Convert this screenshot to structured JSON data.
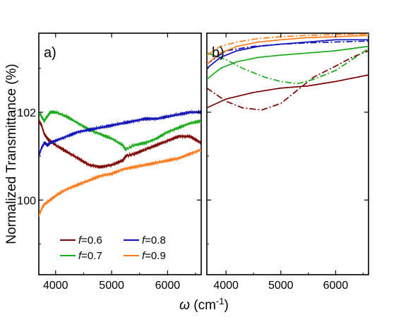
{
  "chart_data": [
    {
      "panel": "a)",
      "type": "line",
      "xlabel": "ω (cm⁻¹)",
      "ylabel": "Normalized Transmittance (%)",
      "xlim": [
        3700,
        6600
      ],
      "ylim": [
        98.3,
        103.8
      ],
      "xticks": [
        "4000",
        "5000",
        "6000"
      ],
      "yticks": [
        "100",
        "102"
      ],
      "grid": false,
      "legend": {
        "placement": "bottom",
        "entries": [
          {
            "label_italic": "f",
            "label_rest": "=0.6",
            "color": "#7b0000"
          },
          {
            "label_italic": "f",
            "label_rest": "=0.8",
            "color": "#1010b8"
          },
          {
            "label_italic": "f",
            "label_rest": "=0.7",
            "color": "#1aaa1a"
          },
          {
            "label_italic": "f",
            "label_rest": "=0.9",
            "color": "#ff7a1a"
          }
        ]
      },
      "series": [
        {
          "color": "#7b0000",
          "x": [
            3700,
            3750,
            3800,
            3850,
            3900,
            4000,
            4200,
            4400,
            4600,
            4800,
            5000,
            5200,
            5250,
            5400,
            5600,
            5800,
            6000,
            6200,
            6400,
            6600
          ],
          "y": [
            101.8,
            101.7,
            101.5,
            101.4,
            101.35,
            101.25,
            101.1,
            100.95,
            100.8,
            100.75,
            100.8,
            100.9,
            101.0,
            101.05,
            101.15,
            101.25,
            101.35,
            101.45,
            101.45,
            101.3
          ]
        },
        {
          "color": "#1aaa1a",
          "x": [
            3700,
            3750,
            3800,
            3850,
            3900,
            4000,
            4200,
            4400,
            4600,
            4800,
            5000,
            5200,
            5250,
            5400,
            5600,
            5800,
            6000,
            6200,
            6400,
            6600
          ],
          "y": [
            102.0,
            101.9,
            101.8,
            101.9,
            102.0,
            102.0,
            101.9,
            101.75,
            101.6,
            101.5,
            101.4,
            101.25,
            101.15,
            101.25,
            101.3,
            101.4,
            101.55,
            101.65,
            101.75,
            101.8
          ]
        },
        {
          "color": "#1010b8",
          "x": [
            3700,
            3750,
            3800,
            3850,
            3900,
            4000,
            4200,
            4400,
            4600,
            4800,
            5000,
            5200,
            5400,
            5600,
            5800,
            6000,
            6200,
            6400,
            6600
          ],
          "y": [
            101.0,
            101.2,
            101.3,
            101.25,
            101.3,
            101.35,
            101.45,
            101.55,
            101.6,
            101.65,
            101.7,
            101.75,
            101.8,
            101.85,
            101.85,
            101.9,
            101.95,
            102.0,
            102.0
          ]
        },
        {
          "color": "#ff7a1a",
          "x": [
            3700,
            3750,
            3800,
            3900,
            4000,
            4200,
            4400,
            4600,
            4800,
            5000,
            5200,
            5400,
            5600,
            5800,
            6000,
            6200,
            6400,
            6600
          ],
          "y": [
            99.65,
            99.8,
            99.9,
            100.0,
            100.1,
            100.25,
            100.35,
            100.45,
            100.55,
            100.6,
            100.7,
            100.75,
            100.8,
            100.85,
            100.9,
            100.95,
            101.05,
            101.15
          ]
        }
      ]
    },
    {
      "panel": "b)",
      "type": "line",
      "xlabel": "ω (cm⁻¹)",
      "ylabel": "",
      "xlim": [
        3650,
        6600
      ],
      "ylim": [
        98.3,
        103.8
      ],
      "xticks": [
        "4000",
        "5000",
        "6000"
      ],
      "yticks": [],
      "grid": false,
      "series": [
        {
          "color": "#7b0000",
          "style": "solid",
          "x": [
            3650,
            4000,
            4500,
            5000,
            5500,
            6000,
            6600
          ],
          "y": [
            102.1,
            102.3,
            102.45,
            102.55,
            102.6,
            102.7,
            102.85
          ]
        },
        {
          "color": "#7b0000",
          "style": "dashdot",
          "x": [
            3650,
            4000,
            4300,
            4650,
            5000,
            5300,
            5600,
            6000,
            6300,
            6600
          ],
          "y": [
            102.55,
            102.25,
            102.1,
            102.05,
            102.2,
            102.5,
            102.8,
            103.05,
            103.25,
            103.4
          ]
        },
        {
          "color": "#1aaa1a",
          "style": "solid",
          "x": [
            3650,
            3900,
            4200,
            4600,
            5000,
            5500,
            6000,
            6600
          ],
          "y": [
            102.75,
            103.0,
            103.15,
            103.25,
            103.3,
            103.35,
            103.4,
            103.5
          ]
        },
        {
          "color": "#1aaa1a",
          "style": "dashdot",
          "x": [
            3650,
            4000,
            4300,
            4700,
            5000,
            5300,
            5600,
            6000,
            6300,
            6600
          ],
          "y": [
            103.35,
            103.2,
            103.0,
            102.8,
            102.7,
            102.65,
            102.75,
            102.95,
            103.2,
            103.45
          ]
        },
        {
          "color": "#1010b8",
          "style": "solid",
          "x": [
            3650,
            3900,
            4200,
            4600,
            5000,
            5500,
            6000,
            6600
          ],
          "y": [
            103.0,
            103.25,
            103.4,
            103.5,
            103.55,
            103.6,
            103.65,
            103.65
          ]
        },
        {
          "color": "#1010b8",
          "style": "dashdot",
          "x": [
            3650,
            4000,
            4500,
            5000,
            5500,
            6000,
            6600
          ],
          "y": [
            103.1,
            103.4,
            103.5,
            103.55,
            103.58,
            103.6,
            103.62
          ]
        },
        {
          "color": "#ff7a1a",
          "style": "solid",
          "x": [
            3650,
            3900,
            4200,
            4600,
            5000,
            5500,
            6000,
            6600
          ],
          "y": [
            103.1,
            103.35,
            103.5,
            103.6,
            103.65,
            103.7,
            103.72,
            103.75
          ]
        },
        {
          "color": "#ff7a1a",
          "style": "dashdot",
          "x": [
            3650,
            3900,
            4200,
            4600,
            5000,
            5500,
            6000,
            6600
          ],
          "y": [
            103.3,
            103.5,
            103.6,
            103.68,
            103.72,
            103.75,
            103.77,
            103.78
          ]
        }
      ]
    }
  ]
}
